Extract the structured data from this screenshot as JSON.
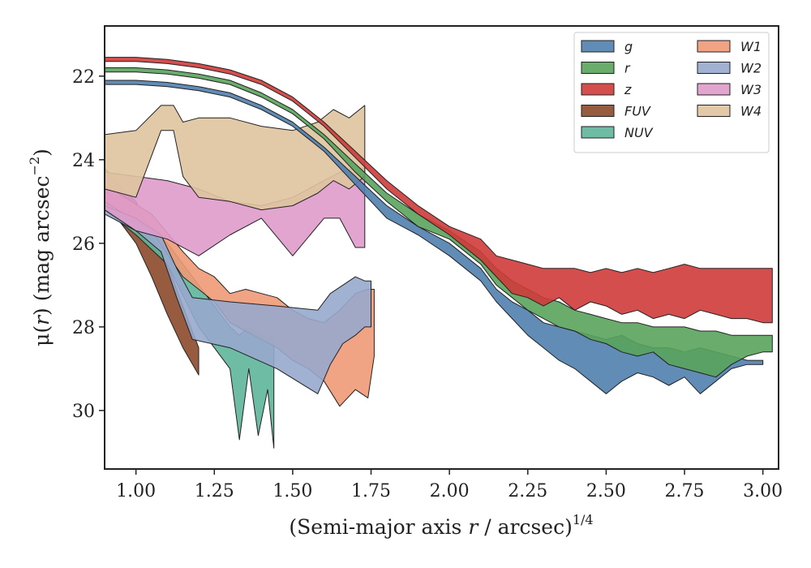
{
  "chart_data": {
    "type": "area",
    "xlabel_text": "(Semi-major axis ",
    "xlabel_var": "r",
    "xlabel_units": " / arcsec)",
    "xlabel_exp": "1/4",
    "ylabel_prefix": "μ(",
    "ylabel_var": "r",
    "ylabel_units": ") (mag arcsec",
    "ylabel_exp": "−2",
    "ylabel_close": ")",
    "xlim": [
      0.9,
      3.05
    ],
    "ylim": [
      31.4,
      20.8
    ],
    "y_inverted": true,
    "xticks": [
      1.0,
      1.25,
      1.5,
      1.75,
      2.0,
      2.25,
      2.5,
      2.75,
      3.0
    ],
    "xtick_labels": [
      "1.00",
      "1.25",
      "1.50",
      "1.75",
      "2.00",
      "2.25",
      "2.50",
      "2.75",
      "3.00"
    ],
    "yticks": [
      22,
      24,
      26,
      28,
      30
    ],
    "ytick_labels": [
      "22",
      "24",
      "26",
      "28",
      "30"
    ],
    "grid": false,
    "legend_position": "top-right",
    "legend_columns": 2,
    "series": [
      {
        "name": "FUV",
        "color": "#8c4a2b",
        "x": [
          0.9,
          1.0,
          1.05,
          1.1,
          1.15,
          1.2
        ],
        "lo": [
          24.2,
          25.0,
          25.8,
          26.5,
          27.5,
          28.5
        ],
        "hi": [
          25.0,
          26.0,
          26.8,
          27.7,
          28.5,
          29.15
        ]
      },
      {
        "name": "NUV",
        "color": "#5fb59b",
        "x": [
          0.9,
          1.0,
          1.1,
          1.2,
          1.25,
          1.3,
          1.33,
          1.36,
          1.39,
          1.42,
          1.44
        ],
        "lo": [
          24.5,
          25.2,
          26.0,
          27.0,
          27.5,
          28.0,
          28.2,
          28.0,
          28.1,
          28.3,
          28.2
        ],
        "hi": [
          25.2,
          25.8,
          26.5,
          28.0,
          28.5,
          29.0,
          30.7,
          29.0,
          30.6,
          29.5,
          30.9
        ]
      },
      {
        "name": "W1",
        "color": "#ee9a75",
        "x": [
          0.9,
          1.05,
          1.15,
          1.2,
          1.25,
          1.3,
          1.35,
          1.4,
          1.45,
          1.5,
          1.55,
          1.6,
          1.65,
          1.7,
          1.74,
          1.76
        ],
        "lo": [
          24.6,
          25.3,
          26.2,
          26.6,
          26.8,
          27.2,
          27.1,
          27.2,
          27.3,
          27.6,
          27.8,
          27.9,
          27.6,
          27.2,
          27.1,
          27.1
        ],
        "hi": [
          25.0,
          25.7,
          26.8,
          27.1,
          27.4,
          27.9,
          28.1,
          28.3,
          28.5,
          28.8,
          29.0,
          29.3,
          29.9,
          29.5,
          29.7,
          28.7
        ]
      },
      {
        "name": "W2",
        "color": "#97a8cc",
        "x": [
          0.9,
          1.0,
          1.08,
          1.13,
          1.18,
          1.3,
          1.45,
          1.58,
          1.62,
          1.66,
          1.7,
          1.73,
          1.75
        ],
        "lo": [
          25.1,
          25.4,
          25.8,
          26.6,
          27.3,
          27.4,
          27.5,
          27.6,
          27.2,
          27.0,
          26.8,
          26.9,
          26.9
        ],
        "hi": [
          25.3,
          25.7,
          26.2,
          27.3,
          28.3,
          28.5,
          29.0,
          29.6,
          28.9,
          28.4,
          28.2,
          28.0,
          28.0
        ]
      },
      {
        "name": "W3",
        "color": "#df9bcb",
        "x": [
          0.9,
          1.0,
          1.1,
          1.2,
          1.3,
          1.4,
          1.5,
          1.6,
          1.65,
          1.7,
          1.73
        ],
        "lo": [
          24.3,
          24.4,
          24.5,
          24.7,
          25.0,
          25.1,
          24.9,
          24.5,
          24.3,
          24.2,
          24.2
        ],
        "hi": [
          25.2,
          25.7,
          25.9,
          26.3,
          25.8,
          25.4,
          26.3,
          25.4,
          25.4,
          26.1,
          26.1
        ]
      },
      {
        "name": "W4",
        "color": "#dfc49e",
        "x": [
          0.9,
          1.0,
          1.08,
          1.12,
          1.15,
          1.2,
          1.3,
          1.4,
          1.5,
          1.58,
          1.63,
          1.68,
          1.73
        ],
        "lo": [
          23.4,
          23.3,
          22.7,
          22.7,
          23.1,
          23.0,
          23.0,
          23.2,
          23.3,
          23.1,
          22.8,
          23.0,
          22.7
        ],
        "hi": [
          24.7,
          24.9,
          23.3,
          23.3,
          24.4,
          24.9,
          25.0,
          25.2,
          25.1,
          24.8,
          24.5,
          24.7,
          24.4
        ]
      },
      {
        "name": "g",
        "color": "#4f7fae",
        "x": [
          0.9,
          1.0,
          1.1,
          1.2,
          1.3,
          1.4,
          1.5,
          1.6,
          1.7,
          1.8,
          1.9,
          2.0,
          2.1,
          2.15,
          2.2,
          2.25,
          2.3,
          2.35,
          2.4,
          2.45,
          2.5,
          2.55,
          2.6,
          2.65,
          2.7,
          2.75,
          2.8,
          2.85,
          2.9,
          2.95,
          3.0
        ],
        "lo": [
          22.1,
          22.1,
          22.15,
          22.25,
          22.4,
          22.7,
          23.1,
          23.7,
          24.4,
          25.1,
          25.6,
          26.0,
          26.6,
          27.1,
          27.4,
          27.6,
          27.9,
          28.0,
          28.1,
          28.2,
          28.3,
          28.2,
          28.4,
          28.5,
          28.5,
          28.6,
          28.5,
          28.6,
          28.7,
          28.8,
          28.8
        ],
        "hi": [
          22.2,
          22.2,
          22.25,
          22.35,
          22.5,
          22.8,
          23.2,
          23.8,
          24.6,
          25.4,
          25.8,
          26.3,
          26.9,
          27.4,
          27.8,
          28.2,
          28.5,
          28.8,
          29.0,
          29.3,
          29.6,
          29.3,
          29.1,
          29.2,
          29.4,
          29.2,
          29.6,
          29.3,
          29.0,
          28.9,
          28.9
        ]
      },
      {
        "name": "r",
        "color": "#5aa35c",
        "x": [
          0.9,
          1.0,
          1.1,
          1.2,
          1.3,
          1.4,
          1.5,
          1.6,
          1.7,
          1.8,
          1.9,
          2.0,
          2.1,
          2.15,
          2.2,
          2.25,
          2.3,
          2.35,
          2.4,
          2.45,
          2.5,
          2.55,
          2.6,
          2.65,
          2.7,
          2.75,
          2.8,
          2.85,
          2.9,
          2.95,
          3.0,
          3.03
        ],
        "lo": [
          21.8,
          21.8,
          21.85,
          21.95,
          22.1,
          22.4,
          22.8,
          23.4,
          24.1,
          24.8,
          25.3,
          25.7,
          26.2,
          26.6,
          26.9,
          27.1,
          27.3,
          27.4,
          27.6,
          27.7,
          27.8,
          27.9,
          27.9,
          28.0,
          28.0,
          28.0,
          28.1,
          28.1,
          28.2,
          28.2,
          28.2,
          28.2
        ],
        "hi": [
          21.9,
          21.9,
          21.95,
          22.05,
          22.2,
          22.5,
          22.9,
          23.5,
          24.3,
          25.0,
          25.6,
          25.9,
          26.5,
          27.0,
          27.3,
          27.6,
          27.8,
          28.0,
          28.1,
          28.3,
          28.4,
          28.6,
          28.7,
          28.6,
          28.9,
          29.0,
          29.1,
          29.2,
          28.9,
          28.7,
          28.6,
          28.6
        ]
      },
      {
        "name": "z",
        "color": "#cf3b3b",
        "x": [
          0.9,
          1.0,
          1.1,
          1.2,
          1.3,
          1.4,
          1.5,
          1.6,
          1.7,
          1.8,
          1.9,
          2.0,
          2.1,
          2.15,
          2.2,
          2.25,
          2.3,
          2.35,
          2.4,
          2.45,
          2.5,
          2.55,
          2.6,
          2.65,
          2.7,
          2.75,
          2.8,
          2.85,
          2.9,
          2.95,
          3.0,
          3.03
        ],
        "lo": [
          21.55,
          21.55,
          21.6,
          21.7,
          21.85,
          22.1,
          22.5,
          23.1,
          23.8,
          24.5,
          25.1,
          25.6,
          25.9,
          26.3,
          26.4,
          26.5,
          26.6,
          26.6,
          26.6,
          26.7,
          26.6,
          26.7,
          26.6,
          26.7,
          26.6,
          26.5,
          26.6,
          26.6,
          26.6,
          26.6,
          26.6,
          26.6
        ],
        "hi": [
          21.65,
          21.65,
          21.7,
          21.8,
          21.95,
          22.2,
          22.6,
          23.2,
          23.95,
          24.7,
          25.3,
          25.8,
          26.4,
          26.8,
          27.2,
          27.3,
          27.5,
          27.3,
          27.6,
          27.4,
          27.5,
          27.7,
          27.6,
          27.8,
          27.7,
          27.8,
          27.6,
          27.7,
          27.8,
          27.8,
          27.9,
          27.9
        ]
      }
    ],
    "legend_order": [
      "g",
      "r",
      "z",
      "FUV",
      "NUV",
      "W1",
      "W2",
      "W3",
      "W4"
    ]
  }
}
